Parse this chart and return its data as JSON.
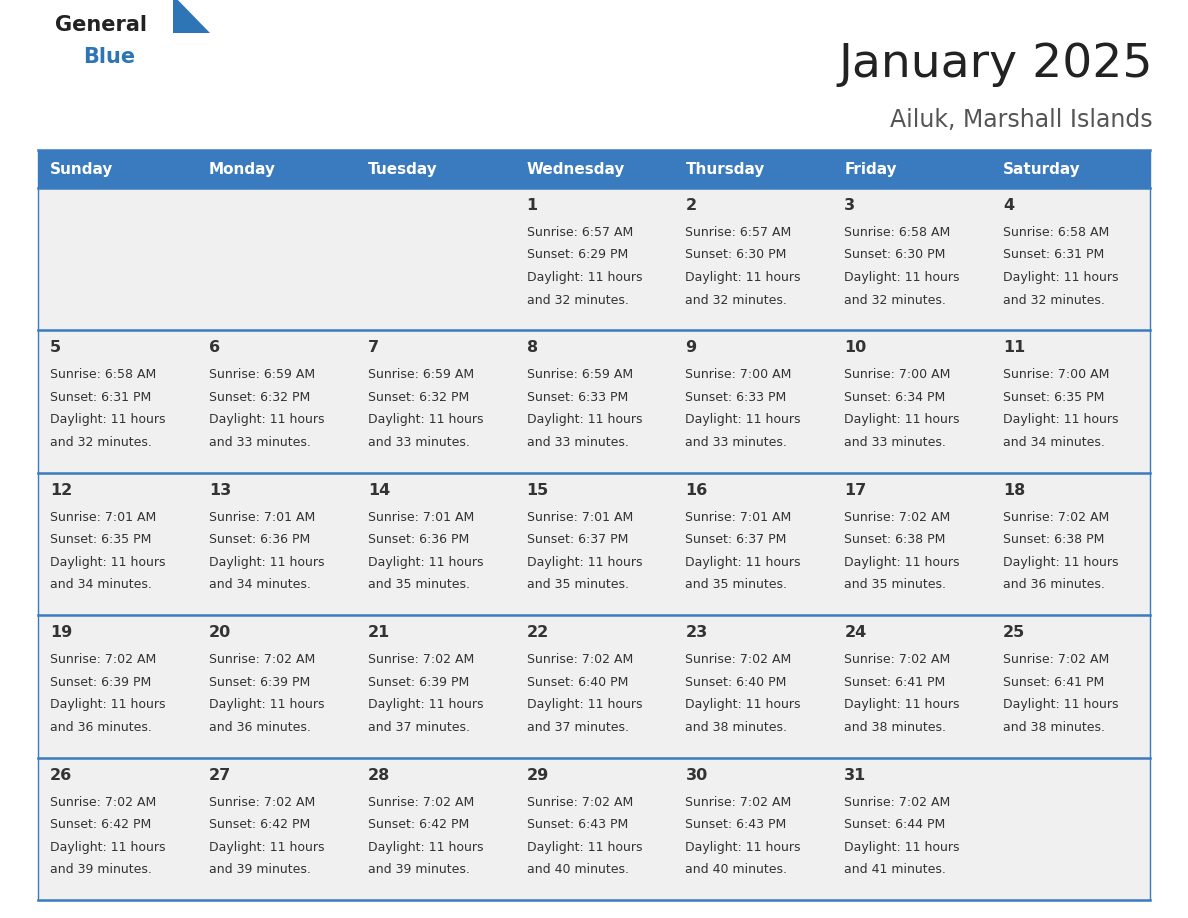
{
  "title": "January 2025",
  "subtitle": "Ailuk, Marshall Islands",
  "days_of_week": [
    "Sunday",
    "Monday",
    "Tuesday",
    "Wednesday",
    "Thursday",
    "Friday",
    "Saturday"
  ],
  "header_bg": "#3a7abf",
  "header_text": "#ffffff",
  "row_bg": "#f0f0f0",
  "cell_text_color": "#333333",
  "day_num_color": "#333333",
  "border_color": "#3a7abf",
  "title_color": "#222222",
  "subtitle_color": "#555555",
  "logo_general_color": "#222222",
  "logo_blue_color": "#2e75b6",
  "weeks": [
    [
      {
        "day": null,
        "sunrise": null,
        "sunset": null,
        "daylight_min": null
      },
      {
        "day": null,
        "sunrise": null,
        "sunset": null,
        "daylight_min": null
      },
      {
        "day": null,
        "sunrise": null,
        "sunset": null,
        "daylight_min": null
      },
      {
        "day": 1,
        "sunrise": "6:57 AM",
        "sunset": "6:29 PM",
        "daylight_min": "and 32 minutes."
      },
      {
        "day": 2,
        "sunrise": "6:57 AM",
        "sunset": "6:30 PM",
        "daylight_min": "and 32 minutes."
      },
      {
        "day": 3,
        "sunrise": "6:58 AM",
        "sunset": "6:30 PM",
        "daylight_min": "and 32 minutes."
      },
      {
        "day": 4,
        "sunrise": "6:58 AM",
        "sunset": "6:31 PM",
        "daylight_min": "and 32 minutes."
      }
    ],
    [
      {
        "day": 5,
        "sunrise": "6:58 AM",
        "sunset": "6:31 PM",
        "daylight_min": "and 32 minutes."
      },
      {
        "day": 6,
        "sunrise": "6:59 AM",
        "sunset": "6:32 PM",
        "daylight_min": "and 33 minutes."
      },
      {
        "day": 7,
        "sunrise": "6:59 AM",
        "sunset": "6:32 PM",
        "daylight_min": "and 33 minutes."
      },
      {
        "day": 8,
        "sunrise": "6:59 AM",
        "sunset": "6:33 PM",
        "daylight_min": "and 33 minutes."
      },
      {
        "day": 9,
        "sunrise": "7:00 AM",
        "sunset": "6:33 PM",
        "daylight_min": "and 33 minutes."
      },
      {
        "day": 10,
        "sunrise": "7:00 AM",
        "sunset": "6:34 PM",
        "daylight_min": "and 33 minutes."
      },
      {
        "day": 11,
        "sunrise": "7:00 AM",
        "sunset": "6:35 PM",
        "daylight_min": "and 34 minutes."
      }
    ],
    [
      {
        "day": 12,
        "sunrise": "7:01 AM",
        "sunset": "6:35 PM",
        "daylight_min": "and 34 minutes."
      },
      {
        "day": 13,
        "sunrise": "7:01 AM",
        "sunset": "6:36 PM",
        "daylight_min": "and 34 minutes."
      },
      {
        "day": 14,
        "sunrise": "7:01 AM",
        "sunset": "6:36 PM",
        "daylight_min": "and 35 minutes."
      },
      {
        "day": 15,
        "sunrise": "7:01 AM",
        "sunset": "6:37 PM",
        "daylight_min": "and 35 minutes."
      },
      {
        "day": 16,
        "sunrise": "7:01 AM",
        "sunset": "6:37 PM",
        "daylight_min": "and 35 minutes."
      },
      {
        "day": 17,
        "sunrise": "7:02 AM",
        "sunset": "6:38 PM",
        "daylight_min": "and 35 minutes."
      },
      {
        "day": 18,
        "sunrise": "7:02 AM",
        "sunset": "6:38 PM",
        "daylight_min": "and 36 minutes."
      }
    ],
    [
      {
        "day": 19,
        "sunrise": "7:02 AM",
        "sunset": "6:39 PM",
        "daylight_min": "and 36 minutes."
      },
      {
        "day": 20,
        "sunrise": "7:02 AM",
        "sunset": "6:39 PM",
        "daylight_min": "and 36 minutes."
      },
      {
        "day": 21,
        "sunrise": "7:02 AM",
        "sunset": "6:39 PM",
        "daylight_min": "and 37 minutes."
      },
      {
        "day": 22,
        "sunrise": "7:02 AM",
        "sunset": "6:40 PM",
        "daylight_min": "and 37 minutes."
      },
      {
        "day": 23,
        "sunrise": "7:02 AM",
        "sunset": "6:40 PM",
        "daylight_min": "and 38 minutes."
      },
      {
        "day": 24,
        "sunrise": "7:02 AM",
        "sunset": "6:41 PM",
        "daylight_min": "and 38 minutes."
      },
      {
        "day": 25,
        "sunrise": "7:02 AM",
        "sunset": "6:41 PM",
        "daylight_min": "and 38 minutes."
      }
    ],
    [
      {
        "day": 26,
        "sunrise": "7:02 AM",
        "sunset": "6:42 PM",
        "daylight_min": "and 39 minutes."
      },
      {
        "day": 27,
        "sunrise": "7:02 AM",
        "sunset": "6:42 PM",
        "daylight_min": "and 39 minutes."
      },
      {
        "day": 28,
        "sunrise": "7:02 AM",
        "sunset": "6:42 PM",
        "daylight_min": "and 39 minutes."
      },
      {
        "day": 29,
        "sunrise": "7:02 AM",
        "sunset": "6:43 PM",
        "daylight_min": "and 40 minutes."
      },
      {
        "day": 30,
        "sunrise": "7:02 AM",
        "sunset": "6:43 PM",
        "daylight_min": "and 40 minutes."
      },
      {
        "day": 31,
        "sunrise": "7:02 AM",
        "sunset": "6:44 PM",
        "daylight_min": "and 41 minutes."
      },
      {
        "day": null,
        "sunrise": null,
        "sunset": null,
        "daylight_min": null
      }
    ]
  ],
  "fig_width": 11.88,
  "fig_height": 9.18,
  "fig_dpi": 100
}
